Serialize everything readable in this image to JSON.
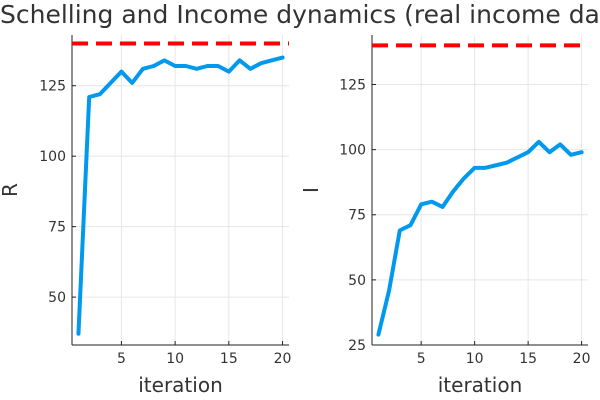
{
  "title": "Schelling and Income dynamics (real income data",
  "colors": {
    "series": "#0099ee",
    "reference": "#ff0000",
    "grid": "#e6e6e6",
    "axis": "#222222",
    "text": "#333333"
  },
  "chart_data": [
    {
      "type": "line",
      "xlabel": "iteration",
      "ylabel": "R",
      "xlim": [
        0.4,
        20.6
      ],
      "ylim": [
        33,
        143
      ],
      "xticks": [
        5,
        10,
        15,
        20
      ],
      "yticks": [
        50,
        75,
        100,
        125
      ],
      "grid": true,
      "x": [
        1,
        2,
        3,
        4,
        5,
        6,
        7,
        8,
        9,
        10,
        11,
        12,
        13,
        14,
        15,
        16,
        17,
        18,
        19,
        20
      ],
      "series": [
        {
          "name": "",
          "values": [
            37,
            121,
            122,
            126,
            130,
            126,
            131,
            132,
            134,
            132,
            132,
            131,
            132,
            132,
            130,
            134,
            131,
            133,
            134,
            135
          ]
        }
      ],
      "reference_line": {
        "y": 140,
        "style": "dashed"
      }
    },
    {
      "type": "line",
      "xlabel": "iteration",
      "ylabel": "I",
      "xlim": [
        0.4,
        20.6
      ],
      "ylim": [
        25,
        144
      ],
      "xticks": [
        5,
        10,
        15,
        20
      ],
      "yticks": [
        25,
        50,
        75,
        100,
        125
      ],
      "grid": true,
      "x": [
        1,
        2,
        3,
        4,
        5,
        6,
        7,
        8,
        9,
        10,
        11,
        12,
        13,
        14,
        15,
        16,
        17,
        18,
        19,
        20
      ],
      "series": [
        {
          "name": "",
          "values": [
            29,
            46,
            69,
            71,
            79,
            80,
            78,
            84,
            89,
            93,
            93,
            94,
            95,
            97,
            99,
            103,
            99,
            102,
            98,
            99
          ]
        }
      ],
      "reference_line": {
        "y": 140,
        "style": "dashed"
      }
    }
  ]
}
